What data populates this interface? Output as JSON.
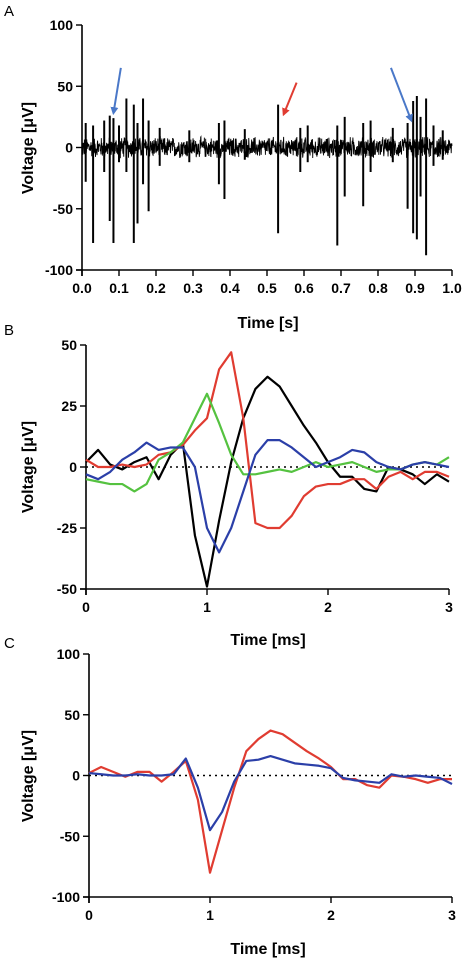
{
  "chart_data": [
    {
      "panel_label": "A",
      "type": "line",
      "xlabel": "Time [s]",
      "ylabel": "Voltage [μV]",
      "xlim": [
        0.0,
        1.0
      ],
      "ylim": [
        -100,
        100
      ],
      "x_ticks": [
        "0.0",
        "0.1",
        "0.2",
        "0.3",
        "0.4",
        "0.5",
        "0.6",
        "0.7",
        "0.8",
        "0.9",
        "1.0"
      ],
      "y_ticks": [
        "100",
        "50",
        "0",
        "-50",
        "-100"
      ],
      "noise_amplitude": 8,
      "spikes": [
        {
          "x": 0.01,
          "high": 20,
          "low": -28
        },
        {
          "x": 0.03,
          "high": 18,
          "low": -78
        },
        {
          "x": 0.06,
          "high": 22,
          "low": -20
        },
        {
          "x": 0.075,
          "high": 26,
          "low": -60
        },
        {
          "x": 0.085,
          "high": 24,
          "low": -78
        },
        {
          "x": 0.1,
          "high": 18,
          "low": -12
        },
        {
          "x": 0.12,
          "high": 40,
          "low": -20
        },
        {
          "x": 0.14,
          "high": 35,
          "low": -78
        },
        {
          "x": 0.15,
          "high": 20,
          "low": -62
        },
        {
          "x": 0.165,
          "high": 40,
          "low": -30
        },
        {
          "x": 0.18,
          "high": 22,
          "low": -52
        },
        {
          "x": 0.21,
          "high": 16,
          "low": -15
        },
        {
          "x": 0.29,
          "high": 14,
          "low": -12
        },
        {
          "x": 0.37,
          "high": 20,
          "low": -30
        },
        {
          "x": 0.385,
          "high": 22,
          "low": -42
        },
        {
          "x": 0.44,
          "high": 15,
          "low": -10
        },
        {
          "x": 0.53,
          "high": 35,
          "low": -70
        },
        {
          "x": 0.59,
          "high": 16,
          "low": -20
        },
        {
          "x": 0.61,
          "high": 18,
          "low": -12
        },
        {
          "x": 0.69,
          "high": 18,
          "low": -80
        },
        {
          "x": 0.71,
          "high": 25,
          "low": -40
        },
        {
          "x": 0.76,
          "high": 20,
          "low": -48
        },
        {
          "x": 0.78,
          "high": 22,
          "low": -20
        },
        {
          "x": 0.84,
          "high": 16,
          "low": -12
        },
        {
          "x": 0.88,
          "high": 20,
          "low": -50
        },
        {
          "x": 0.895,
          "high": 38,
          "low": -70
        },
        {
          "x": 0.905,
          "high": 42,
          "low": -75
        },
        {
          "x": 0.915,
          "high": 25,
          "low": -40
        },
        {
          "x": 0.93,
          "high": 40,
          "low": -88
        },
        {
          "x": 0.95,
          "high": 18,
          "low": -15
        },
        {
          "x": 0.975,
          "high": 14,
          "low": -10
        }
      ],
      "arrows": [
        {
          "color": "#4a78c8",
          "tip": [
            0.085,
            28
          ],
          "tail": [
            0.105,
            65
          ]
        },
        {
          "color": "#e03c31",
          "tip": [
            0.545,
            27
          ],
          "tail": [
            0.58,
            53
          ]
        },
        {
          "color": "#4a78c8",
          "tip": [
            0.89,
            22
          ],
          "tail": [
            0.835,
            65
          ]
        }
      ]
    },
    {
      "panel_label": "B",
      "type": "line",
      "xlabel": "Time [ms]",
      "ylabel": "Voltage [μV]",
      "xlim": [
        0,
        3
      ],
      "ylim": [
        -50,
        50
      ],
      "x_ticks": [
        "0",
        "1",
        "2",
        "3"
      ],
      "y_ticks": [
        "50",
        "25",
        "0",
        "-25",
        "-50"
      ],
      "zero_line": true,
      "series": [
        {
          "color": "#000000",
          "points": [
            [
              0,
              2
            ],
            [
              0.1,
              7
            ],
            [
              0.2,
              1
            ],
            [
              0.3,
              -1
            ],
            [
              0.4,
              2
            ],
            [
              0.5,
              4
            ],
            [
              0.6,
              -5
            ],
            [
              0.7,
              5
            ],
            [
              0.8,
              10
            ],
            [
              0.9,
              -28
            ],
            [
              1.0,
              -49
            ],
            [
              1.1,
              -22
            ],
            [
              1.2,
              2
            ],
            [
              1.3,
              20
            ],
            [
              1.4,
              32
            ],
            [
              1.5,
              37
            ],
            [
              1.6,
              33
            ],
            [
              1.7,
              25
            ],
            [
              1.8,
              17
            ],
            [
              1.9,
              10
            ],
            [
              2.0,
              2
            ],
            [
              2.1,
              -4
            ],
            [
              2.2,
              -4
            ],
            [
              2.3,
              -9
            ],
            [
              2.4,
              -10
            ],
            [
              2.5,
              0
            ],
            [
              2.6,
              -1
            ],
            [
              2.7,
              -3
            ],
            [
              2.8,
              -7
            ],
            [
              2.9,
              -3
            ],
            [
              3.0,
              -6
            ]
          ]
        },
        {
          "color": "#e03c31",
          "points": [
            [
              0,
              3
            ],
            [
              0.1,
              0
            ],
            [
              0.2,
              0
            ],
            [
              0.3,
              1
            ],
            [
              0.4,
              0
            ],
            [
              0.5,
              1
            ],
            [
              0.6,
              5
            ],
            [
              0.7,
              6
            ],
            [
              0.8,
              9
            ],
            [
              0.9,
              15
            ],
            [
              1.0,
              20
            ],
            [
              1.1,
              40
            ],
            [
              1.2,
              47
            ],
            [
              1.3,
              20
            ],
            [
              1.4,
              -23
            ],
            [
              1.5,
              -25
            ],
            [
              1.6,
              -25
            ],
            [
              1.7,
              -20
            ],
            [
              1.8,
              -12
            ],
            [
              1.9,
              -8
            ],
            [
              2.0,
              -7
            ],
            [
              2.1,
              -7
            ],
            [
              2.2,
              -5
            ],
            [
              2.3,
              -5
            ],
            [
              2.4,
              -9
            ],
            [
              2.5,
              -4
            ],
            [
              2.6,
              -2
            ],
            [
              2.7,
              -5
            ],
            [
              2.8,
              -2
            ],
            [
              2.9,
              -2
            ],
            [
              3.0,
              -4
            ]
          ]
        },
        {
          "color": "#55c240",
          "points": [
            [
              0,
              -5
            ],
            [
              0.1,
              -6
            ],
            [
              0.2,
              -7
            ],
            [
              0.3,
              -7
            ],
            [
              0.4,
              -10
            ],
            [
              0.5,
              -7
            ],
            [
              0.6,
              3
            ],
            [
              0.7,
              6
            ],
            [
              0.8,
              10
            ],
            [
              0.9,
              20
            ],
            [
              1.0,
              30
            ],
            [
              1.1,
              18
            ],
            [
              1.2,
              5
            ],
            [
              1.3,
              -3
            ],
            [
              1.4,
              -3
            ],
            [
              1.5,
              -2
            ],
            [
              1.6,
              -1
            ],
            [
              1.7,
              -2
            ],
            [
              1.8,
              0
            ],
            [
              1.9,
              2
            ],
            [
              2.0,
              0
            ],
            [
              2.1,
              1
            ],
            [
              2.2,
              2
            ],
            [
              2.3,
              0
            ],
            [
              2.4,
              -2
            ],
            [
              2.5,
              -1
            ],
            [
              2.6,
              -1
            ],
            [
              2.7,
              1
            ],
            [
              2.8,
              2
            ],
            [
              2.9,
              1
            ],
            [
              3.0,
              4
            ]
          ]
        },
        {
          "color": "#2b3fa8",
          "points": [
            [
              0,
              -3
            ],
            [
              0.1,
              -5
            ],
            [
              0.2,
              -2
            ],
            [
              0.3,
              3
            ],
            [
              0.4,
              6
            ],
            [
              0.5,
              10
            ],
            [
              0.6,
              7
            ],
            [
              0.7,
              8
            ],
            [
              0.8,
              8
            ],
            [
              0.9,
              0
            ],
            [
              1.0,
              -25
            ],
            [
              1.1,
              -35
            ],
            [
              1.2,
              -25
            ],
            [
              1.3,
              -10
            ],
            [
              1.4,
              5
            ],
            [
              1.5,
              11
            ],
            [
              1.6,
              11
            ],
            [
              1.7,
              8
            ],
            [
              1.8,
              4
            ],
            [
              1.9,
              0
            ],
            [
              2.0,
              2
            ],
            [
              2.1,
              4
            ],
            [
              2.2,
              7
            ],
            [
              2.3,
              6
            ],
            [
              2.4,
              2
            ],
            [
              2.5,
              0
            ],
            [
              2.6,
              -1
            ],
            [
              2.7,
              1
            ],
            [
              2.8,
              2
            ],
            [
              2.9,
              1
            ],
            [
              3.0,
              0
            ]
          ]
        }
      ]
    },
    {
      "panel_label": "C",
      "type": "line",
      "xlabel": "Time [ms]",
      "ylabel": "Voltage [μV]",
      "xlim": [
        0,
        3
      ],
      "ylim": [
        -100,
        100
      ],
      "x_ticks": [
        "0",
        "1",
        "2",
        "3"
      ],
      "y_ticks": [
        "100",
        "50",
        "0",
        "-50",
        "-100"
      ],
      "zero_line": true,
      "series": [
        {
          "color": "#e03c31",
          "points": [
            [
              0,
              2
            ],
            [
              0.1,
              7
            ],
            [
              0.2,
              3
            ],
            [
              0.3,
              -1
            ],
            [
              0.4,
              3
            ],
            [
              0.5,
              3
            ],
            [
              0.6,
              -5
            ],
            [
              0.7,
              3
            ],
            [
              0.8,
              12
            ],
            [
              0.9,
              -20
            ],
            [
              1.0,
              -80
            ],
            [
              1.1,
              -45
            ],
            [
              1.2,
              -10
            ],
            [
              1.3,
              20
            ],
            [
              1.4,
              30
            ],
            [
              1.5,
              37
            ],
            [
              1.6,
              34
            ],
            [
              1.7,
              27
            ],
            [
              1.8,
              20
            ],
            [
              1.9,
              14
            ],
            [
              2.0,
              7
            ],
            [
              2.1,
              -3
            ],
            [
              2.2,
              -3
            ],
            [
              2.3,
              -8
            ],
            [
              2.4,
              -10
            ],
            [
              2.5,
              0
            ],
            [
              2.6,
              -1
            ],
            [
              2.7,
              -3
            ],
            [
              2.8,
              -6
            ],
            [
              2.9,
              -3
            ],
            [
              3.0,
              -3
            ]
          ]
        },
        {
          "color": "#2b3fa8",
          "points": [
            [
              0,
              2
            ],
            [
              0.1,
              1
            ],
            [
              0.2,
              0
            ],
            [
              0.3,
              0
            ],
            [
              0.4,
              1
            ],
            [
              0.5,
              0
            ],
            [
              0.6,
              0
            ],
            [
              0.7,
              1
            ],
            [
              0.8,
              14
            ],
            [
              0.9,
              -10
            ],
            [
              1.0,
              -45
            ],
            [
              1.1,
              -30
            ],
            [
              1.2,
              -5
            ],
            [
              1.3,
              12
            ],
            [
              1.4,
              13
            ],
            [
              1.5,
              16
            ],
            [
              1.6,
              13
            ],
            [
              1.7,
              10
            ],
            [
              1.8,
              9
            ],
            [
              1.9,
              8
            ],
            [
              2.0,
              6
            ],
            [
              2.1,
              -2
            ],
            [
              2.2,
              -4
            ],
            [
              2.3,
              -5
            ],
            [
              2.4,
              -6
            ],
            [
              2.5,
              1
            ],
            [
              2.6,
              -1
            ],
            [
              2.7,
              0
            ],
            [
              2.8,
              -1
            ],
            [
              2.9,
              -2
            ],
            [
              3.0,
              -7
            ]
          ]
        }
      ]
    }
  ]
}
